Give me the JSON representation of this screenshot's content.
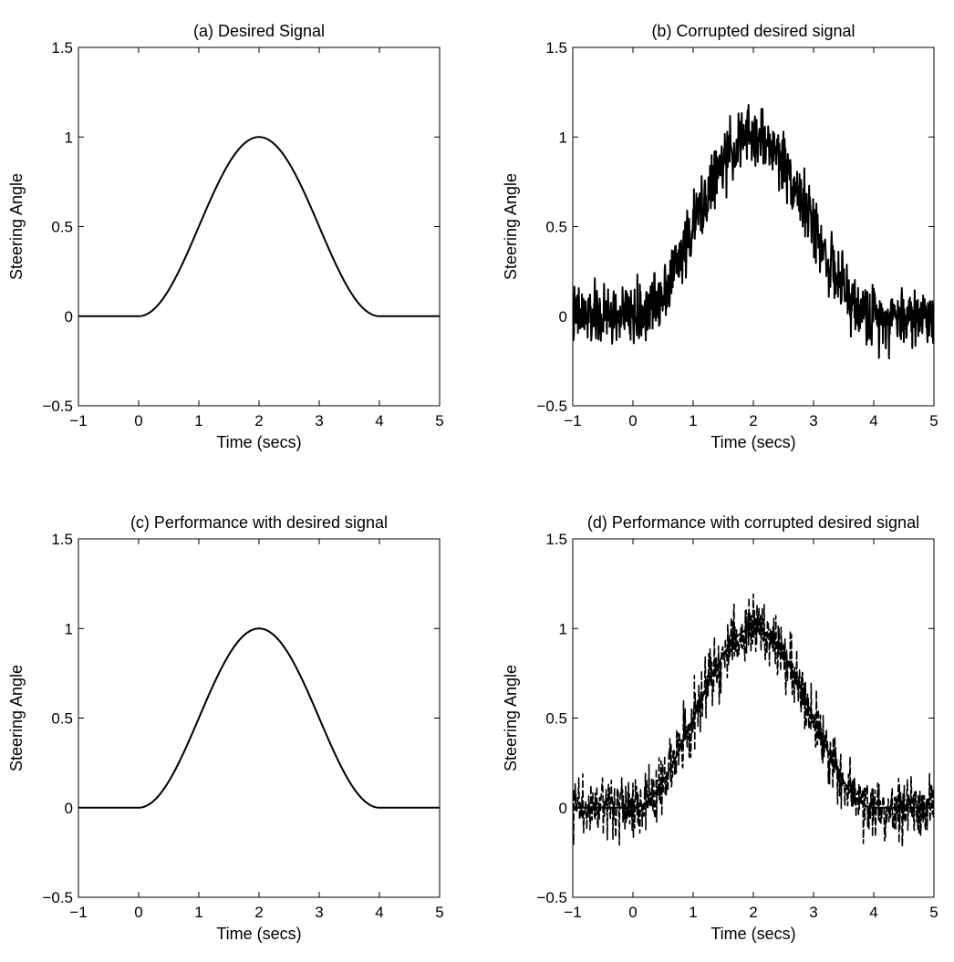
{
  "colors": {
    "line": "#000000",
    "background": "#ffffff"
  },
  "chart_data": [
    {
      "type": "line",
      "title": "(a) Desired Signal",
      "xlabel": "Time (secs)",
      "ylabel": "Steering Angle",
      "xlim": [
        -1,
        5
      ],
      "ylim": [
        -0.5,
        1.5
      ],
      "xticks": [
        -1,
        0,
        1,
        2,
        3,
        4,
        5
      ],
      "xtick_labels": [
        "−1",
        "0",
        "1",
        "2",
        "3",
        "4",
        "5"
      ],
      "yticks": [
        -0.5,
        0,
        0.5,
        1,
        1.5
      ],
      "ytick_labels": [
        "−0.5",
        "0",
        "0.5",
        "1",
        "1.5"
      ],
      "grid": false,
      "series": [
        {
          "kind": "raised-cosine",
          "style": "solid",
          "x": [
            -1,
            0,
            0.5,
            1,
            1.5,
            2,
            2.5,
            3,
            3.5,
            4,
            5
          ],
          "y": [
            0,
            0,
            0.15,
            0.5,
            0.85,
            1,
            0.85,
            0.5,
            0.15,
            0,
            0
          ]
        }
      ]
    },
    {
      "type": "line",
      "title": "(b) Corrupted desired signal",
      "xlabel": "Time (secs)",
      "ylabel": "Steering Angle",
      "xlim": [
        -1,
        5
      ],
      "ylim": [
        -0.5,
        1.5
      ],
      "xticks": [
        -1,
        0,
        1,
        2,
        3,
        4,
        5
      ],
      "xtick_labels": [
        "−1",
        "0",
        "1",
        "2",
        "3",
        "4",
        "5"
      ],
      "yticks": [
        -0.5,
        0,
        0.5,
        1,
        1.5
      ],
      "ytick_labels": [
        "−0.5",
        "0",
        "0.5",
        "1",
        "1.5"
      ],
      "grid": false,
      "series": [
        {
          "kind": "noisy",
          "style": "solid",
          "noise_amplitude": 0.12,
          "x": [
            -1,
            0,
            0.5,
            1,
            1.5,
            2,
            2.5,
            3,
            3.5,
            4,
            5
          ],
          "y": [
            0,
            0,
            0.15,
            0.5,
            0.85,
            1,
            0.85,
            0.5,
            0.15,
            0,
            0
          ]
        }
      ]
    },
    {
      "type": "line",
      "title": "(c) Performance with desired signal",
      "xlabel": "Time (secs)",
      "ylabel": "Steering Angle",
      "xlim": [
        -1,
        5
      ],
      "ylim": [
        -0.5,
        1.5
      ],
      "xticks": [
        -1,
        0,
        1,
        2,
        3,
        4,
        5
      ],
      "xtick_labels": [
        "−1",
        "0",
        "1",
        "2",
        "3",
        "4",
        "5"
      ],
      "yticks": [
        -0.5,
        0,
        0.5,
        1,
        1.5
      ],
      "ytick_labels": [
        "−0.5",
        "0",
        "0.5",
        "1",
        "1.5"
      ],
      "grid": false,
      "series": [
        {
          "kind": "raised-cosine",
          "style": "solid",
          "x": [
            -1,
            0,
            0.5,
            1,
            1.5,
            2,
            2.5,
            3,
            3.5,
            4,
            5
          ],
          "y": [
            0,
            0,
            0.15,
            0.5,
            0.85,
            1,
            0.85,
            0.5,
            0.15,
            0,
            0
          ]
        },
        {
          "kind": "raised-cosine",
          "style": "dashed",
          "x": [
            -1,
            0,
            0.5,
            1,
            1.5,
            2,
            2.5,
            3,
            3.5,
            4,
            5
          ],
          "y": [
            0,
            0,
            0.15,
            0.5,
            0.85,
            1,
            0.85,
            0.5,
            0.15,
            0,
            0
          ]
        }
      ]
    },
    {
      "type": "line",
      "title": "(d) Performance with corrupted desired signal",
      "xlabel": "Time (secs)",
      "ylabel": "Steering Angle",
      "xlim": [
        -1,
        5
      ],
      "ylim": [
        -0.5,
        1.5
      ],
      "xticks": [
        -1,
        0,
        1,
        2,
        3,
        4,
        5
      ],
      "xtick_labels": [
        "−1",
        "0",
        "1",
        "2",
        "3",
        "4",
        "5"
      ],
      "yticks": [
        -0.5,
        0,
        0.5,
        1,
        1.5
      ],
      "ytick_labels": [
        "−0.5",
        "0",
        "0.5",
        "1",
        "1.5"
      ],
      "grid": false,
      "series": [
        {
          "kind": "raised-cosine",
          "style": "solid",
          "x": [
            -1,
            0,
            0.5,
            1,
            1.5,
            2,
            2.5,
            3,
            3.5,
            4,
            5
          ],
          "y": [
            0,
            0,
            0.15,
            0.5,
            0.85,
            1,
            0.85,
            0.5,
            0.15,
            0,
            0
          ]
        },
        {
          "kind": "noisy",
          "style": "dashed",
          "noise_amplitude": 0.12,
          "x": [
            -1,
            0,
            0.5,
            1,
            1.5,
            2,
            2.5,
            3,
            3.5,
            4,
            5
          ],
          "y": [
            0,
            0,
            0.15,
            0.5,
            0.85,
            1,
            0.85,
            0.5,
            0.15,
            0,
            0
          ]
        }
      ]
    }
  ]
}
